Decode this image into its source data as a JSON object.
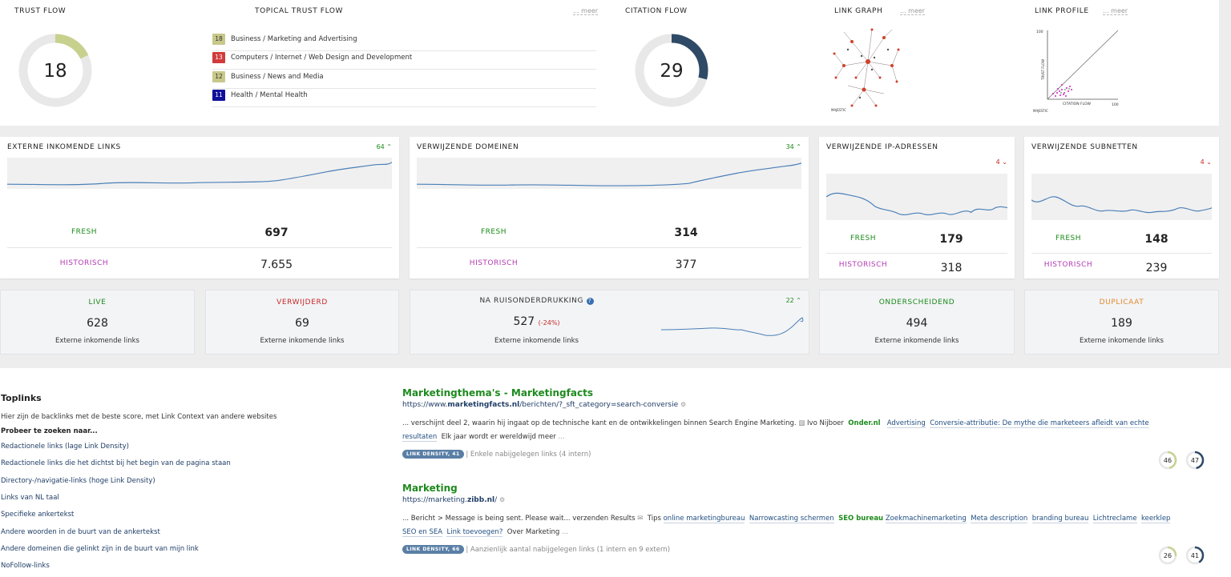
{
  "top": {
    "trust_flow": {
      "label": "TRUST FLOW",
      "value": "18",
      "fraction": 0.18
    },
    "topical": {
      "label": "TOPICAL TRUST FLOW",
      "meer": "... meer",
      "rows": [
        {
          "score": "18",
          "text": "Business / Marketing and Advertising",
          "color": "#c8c88a"
        },
        {
          "score": "13",
          "text": "Computers / Internet / Web Design and Development",
          "color": "#d13b3b"
        },
        {
          "score": "12",
          "text": "Business / News and Media",
          "color": "#c8c88a"
        },
        {
          "score": "11",
          "text": "Health / Mental Health",
          "color": "#10109a"
        }
      ]
    },
    "citation_flow": {
      "label": "CITATION FLOW",
      "value": "29",
      "fraction": 0.29
    },
    "link_graph": {
      "label": "LINK GRAPH",
      "meer": "... meer",
      "brand": "MAJESTIC"
    },
    "link_profile": {
      "label": "LINK PROFILE",
      "meer": "... meer",
      "y_axis": "TRUST FLOW",
      "x_axis": "CITATION FLOW",
      "y_tick": "100",
      "x_tick": "100",
      "brand": "MAJESTIC"
    }
  },
  "metrics": [
    {
      "title": "EXTERNE INKOMENDE LINKS",
      "delta": "64",
      "dir": "up",
      "fresh_label": "FRESH",
      "fresh": "697",
      "hist_label": "HISTORISCH",
      "hist": "7.655"
    },
    {
      "title": "VERWIJZENDE DOMEINEN",
      "delta": "34",
      "dir": "up",
      "fresh_label": "FRESH",
      "fresh": "314",
      "hist_label": "HISTORISCH",
      "hist": "377"
    },
    {
      "title": "VERWIJZENDE IP-ADRESSEN",
      "delta": "4",
      "dir": "down",
      "fresh_label": "FRESH",
      "fresh": "179",
      "hist_label": "HISTORISCH",
      "hist": "318"
    },
    {
      "title": "VERWIJZENDE SUBNETTEN",
      "delta": "4",
      "dir": "down",
      "fresh_label": "FRESH",
      "fresh": "148",
      "hist_label": "HISTORISCH",
      "hist": "239"
    }
  ],
  "stats": [
    {
      "title": "LIVE",
      "value": "628",
      "sub": "Externe inkomende links",
      "color": "#1a8a1a"
    },
    {
      "title": "VERWIJDERD",
      "value": "69",
      "sub": "Externe inkomende links",
      "color": "#c62828"
    },
    {
      "title": "NA RUISONDERDRUKKING",
      "value": "527",
      "pct": "(-24%)",
      "delta": "22",
      "sub": "Externe inkomende links",
      "color": "#333"
    },
    {
      "title": "ONDERSCHEIDEND",
      "value": "494",
      "sub": "Externe inkomende links",
      "color": "#1a8a1a"
    },
    {
      "title": "DUPLICAAT",
      "value": "189",
      "sub": "Externe inkomende links",
      "color": "#e08a2a"
    }
  ],
  "toplinks": {
    "heading": "Toplinks",
    "intro": "Hier zijn de backlinks met de beste score, met Link Context van andere websites",
    "try": "Probeer te zoeken naar...",
    "links": [
      "Redactionele links (lage Link Density)",
      "Redactionele links die het dichtst bij het begin van de pagina staan",
      "Directory-/navigatie-links (hoge Link Density)",
      "Links van NL taal",
      "Specifieke ankertekst",
      "Andere woorden in de buurt van de ankertekst",
      "Andere domeinen die gelinkt zijn in de buurt van mijn link",
      "NoFollow-links"
    ]
  },
  "results": [
    {
      "title": "Marketingthema's - Marketingfacts",
      "url_pre": "https://www.",
      "url_bold": "marketingfacts.nl",
      "url_post": "/berichten/?_sft_category=search-conversie",
      "snip1_a": "... verschijnt deel 2, waarin hij ingaat op de technische kant en de ontwikkelingen binnen Search Engine Marketing.",
      "snip1_b": "Ivo Nijboer",
      "snip1_c": "Onder.nl",
      "snip1_d": "Advertising",
      "snip1_e": "Conversie-attributie: De mythe die marketeers afleidt van echte",
      "snip2_a": "resultaten",
      "snip2_b": "Elk jaar wordt er wereldwijd meer",
      "snip2_c": "...",
      "pill": "LINK DENSITY, 41",
      "info": "| Enkele nabijgelegen links (4 intern)",
      "tf": "46",
      "cf": "47"
    },
    {
      "title": "Marketing",
      "url_pre": "https://marketing.",
      "url_bold": "zibb.nl",
      "url_post": "/",
      "snip1_a": "... Bericht > Message is being sent. Please wait... verzenden",
      "snip1_b": "Results",
      "snip1_c": "Tips",
      "links": [
        "online marketingbureau",
        "Narrowcasting schermen"
      ],
      "green": "SEO bureau",
      "links2": [
        "Zoekmachinemarketing",
        "Meta description",
        "branding bureau",
        "Lichtreclame",
        "keerklep"
      ],
      "snip2_a": "SEO en SEA",
      "snip2_b": "Link toevoegen?",
      "snip2_c": "Over Marketing",
      "snip2_d": "...",
      "pill": "LINK DENSITY, 66",
      "info": "| Aanzienlijk aantal nabijgelegen links (1 intern en 9 extern)",
      "tf": "26",
      "cf": "41"
    }
  ]
}
